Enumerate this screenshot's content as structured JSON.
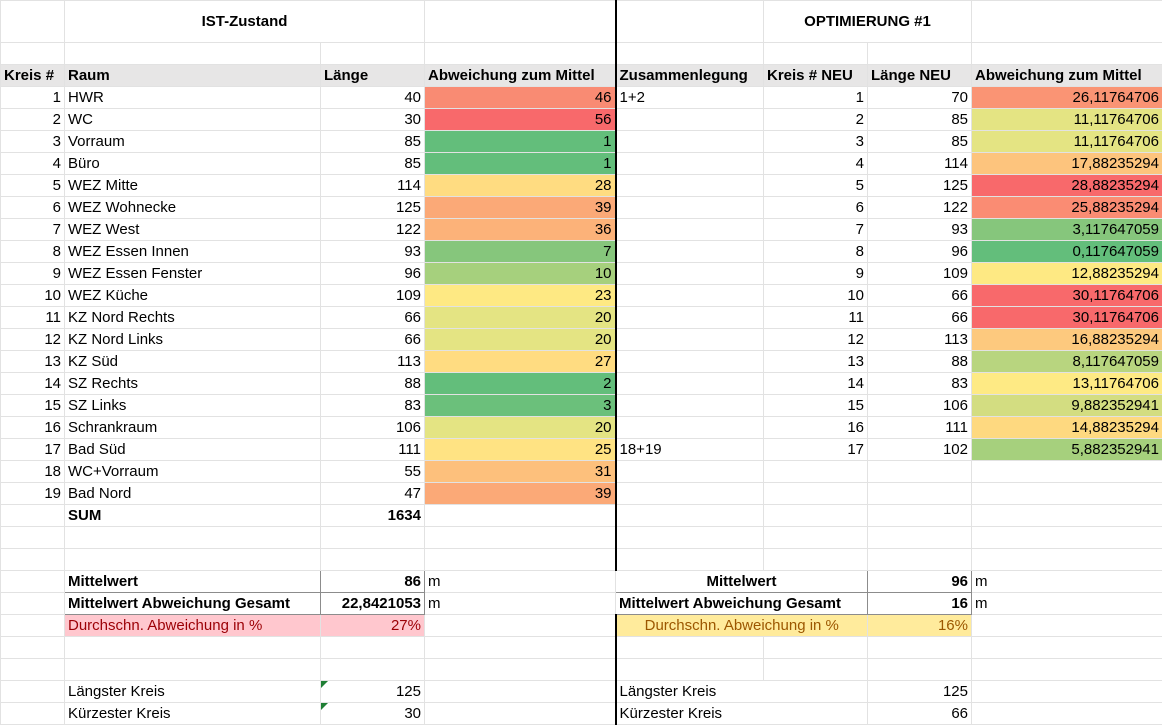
{
  "sheet": {
    "ist_title": "IST-Zustand",
    "opt_title": "OPTIMIERUNG #1"
  },
  "headers": {
    "kreis": "Kreis #",
    "raum": "Raum",
    "laenge": "Länge",
    "abw": "Abweichung zum Mittel",
    "zus": "Zusammenlegung",
    "kreis_neu": "Kreis # NEU",
    "laenge_neu": "Länge NEU",
    "abw_neu": "Abweichung zum Mittel"
  },
  "colors": {
    "green_dark": "#63be7b",
    "green_mid": "#86c67c",
    "green_light": "#a6d07d",
    "yellow_green": "#cddb81",
    "yellow": "#e4e483",
    "yellow_orange": "#ffdc81",
    "orange_light": "#fdc07c",
    "orange": "#fba977",
    "orange_red": "#f98b73",
    "red": "#f8696b"
  },
  "ist_rows": [
    {
      "k": "1",
      "raum": "HWR",
      "len": "40",
      "abw": "46",
      "c": "#f98b73"
    },
    {
      "k": "2",
      "raum": "WC",
      "len": "30",
      "abw": "56",
      "c": "#f8696b"
    },
    {
      "k": "3",
      "raum": "Vorraum",
      "len": "85",
      "abw": "1",
      "c": "#63be7b"
    },
    {
      "k": "4",
      "raum": "Büro",
      "len": "85",
      "abw": "1",
      "c": "#63be7b"
    },
    {
      "k": "5",
      "raum": "WEZ Mitte",
      "len": "114",
      "abw": "28",
      "c": "#ffdc81"
    },
    {
      "k": "6",
      "raum": "WEZ Wohnecke",
      "len": "125",
      "abw": "39",
      "c": "#fba977"
    },
    {
      "k": "7",
      "raum": "WEZ West",
      "len": "122",
      "abw": "36",
      "c": "#fcb279"
    },
    {
      "k": "8",
      "raum": "WEZ Essen Innen",
      "len": "93",
      "abw": "7",
      "c": "#86c67c"
    },
    {
      "k": "9",
      "raum": "WEZ Essen Fenster",
      "len": "96",
      "abw": "10",
      "c": "#a6d07d"
    },
    {
      "k": "10",
      "raum": "WEZ Küche",
      "len": "109",
      "abw": "23",
      "c": "#fee983"
    },
    {
      "k": "11",
      "raum": "KZ Nord Rechts",
      "len": "66",
      "abw": "20",
      "c": "#e4e483"
    },
    {
      "k": "12",
      "raum": "KZ Nord Links",
      "len": "66",
      "abw": "20",
      "c": "#e4e483"
    },
    {
      "k": "13",
      "raum": "KZ Süd",
      "len": "113",
      "abw": "27",
      "c": "#ffdc81"
    },
    {
      "k": "14",
      "raum": "SZ Rechts",
      "len": "88",
      "abw": "2",
      "c": "#63be7b"
    },
    {
      "k": "15",
      "raum": "SZ Links",
      "len": "83",
      "abw": "3",
      "c": "#6bc07b"
    },
    {
      "k": "16",
      "raum": "Schrankraum",
      "len": "106",
      "abw": "20",
      "c": "#e4e483"
    },
    {
      "k": "17",
      "raum": "Bad Süd",
      "len": "111",
      "abw": "25",
      "c": "#ffe383"
    },
    {
      "k": "18",
      "raum": "WC+Vorraum",
      "len": "55",
      "abw": "31",
      "c": "#fdc07c"
    },
    {
      "k": "19",
      "raum": "Bad Nord",
      "len": "47",
      "abw": "39",
      "c": "#fba977"
    }
  ],
  "opt_rows": [
    {
      "zus": "1+2",
      "k": "1",
      "len": "70",
      "abw": "26,11764706",
      "c": "#fa9474"
    },
    {
      "zus": "",
      "k": "2",
      "len": "85",
      "abw": "11,11764706",
      "c": "#e4e483"
    },
    {
      "zus": "",
      "k": "3",
      "len": "85",
      "abw": "11,11764706",
      "c": "#e4e483"
    },
    {
      "zus": "",
      "k": "4",
      "len": "114",
      "abw": "17,88235294",
      "c": "#fdc47d"
    },
    {
      "zus": "",
      "k": "5",
      "len": "125",
      "abw": "28,88235294",
      "c": "#f8696b"
    },
    {
      "zus": "",
      "k": "6",
      "len": "122",
      "abw": "25,88235294",
      "c": "#fa8c73"
    },
    {
      "zus": "",
      "k": "7",
      "len": "93",
      "abw": "3,117647059",
      "c": "#86c67c"
    },
    {
      "zus": "",
      "k": "8",
      "len": "96",
      "abw": "0,117647059",
      "c": "#63be7b"
    },
    {
      "zus": "",
      "k": "9",
      "len": "109",
      "abw": "12,88235294",
      "c": "#fee983"
    },
    {
      "zus": "",
      "k": "10",
      "len": "66",
      "abw": "30,11764706",
      "c": "#f8696b"
    },
    {
      "zus": "",
      "k": "11",
      "len": "66",
      "abw": "30,11764706",
      "c": "#f8696b"
    },
    {
      "zus": "",
      "k": "12",
      "len": "113",
      "abw": "16,88235294",
      "c": "#fdc97e"
    },
    {
      "zus": "",
      "k": "13",
      "len": "88",
      "abw": "8,117647059",
      "c": "#b8d57f"
    },
    {
      "zus": "",
      "k": "14",
      "len": "83",
      "abw": "13,11764706",
      "c": "#feea84"
    },
    {
      "zus": "",
      "k": "15",
      "len": "106",
      "abw": "9,882352941",
      "c": "#d3dd81"
    },
    {
      "zus": "",
      "k": "16",
      "len": "111",
      "abw": "14,88235294",
      "c": "#fed980"
    },
    {
      "zus": "18+19",
      "k": "17",
      "len": "102",
      "abw": "5,882352941",
      "c": "#a6d07d"
    }
  ],
  "ist_summary": {
    "sum_label": "SUM",
    "sum_value": "1634",
    "mittelwert_label": "Mittelwert",
    "mittelwert_value": "86",
    "mittelwert_unit": "m",
    "mwa_label": "Mittelwert Abweichung Gesamt",
    "mwa_value": "22,8421053",
    "mwa_unit": "m",
    "pct_label": "Durchschn. Abweichung in %",
    "pct_value": "27%",
    "laengster_label": "Längster Kreis",
    "laengster_value": "125",
    "kuerzester_label": "Kürzester Kreis",
    "kuerzester_value": "30"
  },
  "opt_summary": {
    "mittelwert_label": "Mittelwert",
    "mittelwert_value": "96",
    "mittelwert_unit": "m",
    "mwa_label": "Mittelwert Abweichung Gesamt",
    "mwa_value": "16",
    "mwa_unit": "m",
    "pct_label": "Durchschn. Abweichung in %",
    "pct_value": "16%",
    "laengster_label": "Längster Kreis",
    "laengster_value": "125",
    "kuerzester_label": "Kürzester Kreis",
    "kuerzester_value": "66"
  }
}
